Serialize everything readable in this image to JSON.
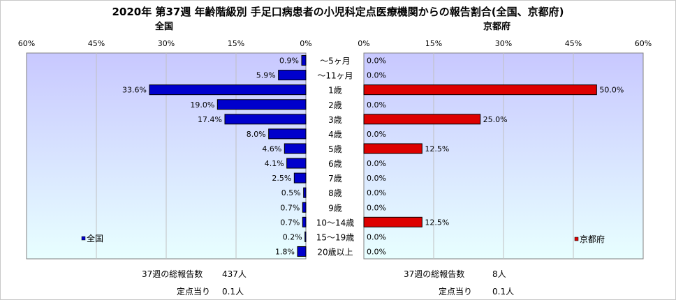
{
  "title": "2020年 第37週 年齢階級別 手足口病患者の小児科定点医療機関からの報告割合(全国、京都府)",
  "colors": {
    "national_bar": "#0000cc",
    "kyoto_bar": "#dd0000",
    "plot_top": "#c8c8ff",
    "plot_bottom": "#e8ffff",
    "grid": "#c0c0c0"
  },
  "chart_data": [
    {
      "type": "bar",
      "orientation": "horizontal",
      "direction": "right-to-left",
      "title": "全国",
      "legend": "全国",
      "legend_position": "bottom-left",
      "xlim": [
        0,
        60
      ],
      "ticks": [
        "60%",
        "45%",
        "30%",
        "15%",
        "0%"
      ],
      "categories": [
        "～5ヶ月",
        "～11ヶ月",
        "1歳",
        "2歳",
        "3歳",
        "4歳",
        "5歳",
        "6歳",
        "7歳",
        "8歳",
        "9歳",
        "10～14歳",
        "15～19歳",
        "20歳以上"
      ],
      "values": [
        0.9,
        5.9,
        33.6,
        19.0,
        17.4,
        8.0,
        4.6,
        4.1,
        2.5,
        0.5,
        0.7,
        0.7,
        0.2,
        1.8
      ],
      "value_labels": [
        "0.9%",
        "5.9%",
        "33.6%",
        "19.0%",
        "17.4%",
        "8.0%",
        "4.6%",
        "4.1%",
        "2.5%",
        "0.5%",
        "0.7%",
        "0.7%",
        "0.2%",
        "1.8%"
      ],
      "grid": true
    },
    {
      "type": "bar",
      "orientation": "horizontal",
      "direction": "left-to-right",
      "title": "京都府",
      "legend": "京都府",
      "legend_position": "bottom-right",
      "xlim": [
        0,
        60
      ],
      "ticks": [
        "0%",
        "15%",
        "30%",
        "45%",
        "60%"
      ],
      "categories": [
        "～5ヶ月",
        "～11ヶ月",
        "1歳",
        "2歳",
        "3歳",
        "4歳",
        "5歳",
        "6歳",
        "7歳",
        "8歳",
        "9歳",
        "10～14歳",
        "15～19歳",
        "20歳以上"
      ],
      "values": [
        0.0,
        0.0,
        50.0,
        0.0,
        25.0,
        0.0,
        12.5,
        0.0,
        0.0,
        0.0,
        0.0,
        12.5,
        0.0,
        0.0
      ],
      "value_labels": [
        "0.0%",
        "0.0%",
        "50.0%",
        "0.0%",
        "25.0%",
        "0.0%",
        "12.5%",
        "0.0%",
        "0.0%",
        "0.0%",
        "0.0%",
        "12.5%",
        "0.0%",
        "0.0%"
      ],
      "grid": true
    }
  ],
  "national_footer": {
    "total_label": "37週の総報告数",
    "total_value": "437人",
    "per_site_label": "定点当り",
    "per_site_value": "0.1人"
  },
  "kyoto_footer": {
    "total_label": "37週の総報告数",
    "total_value": "8人",
    "per_site_label": "定点当り",
    "per_site_value": "0.1人"
  }
}
